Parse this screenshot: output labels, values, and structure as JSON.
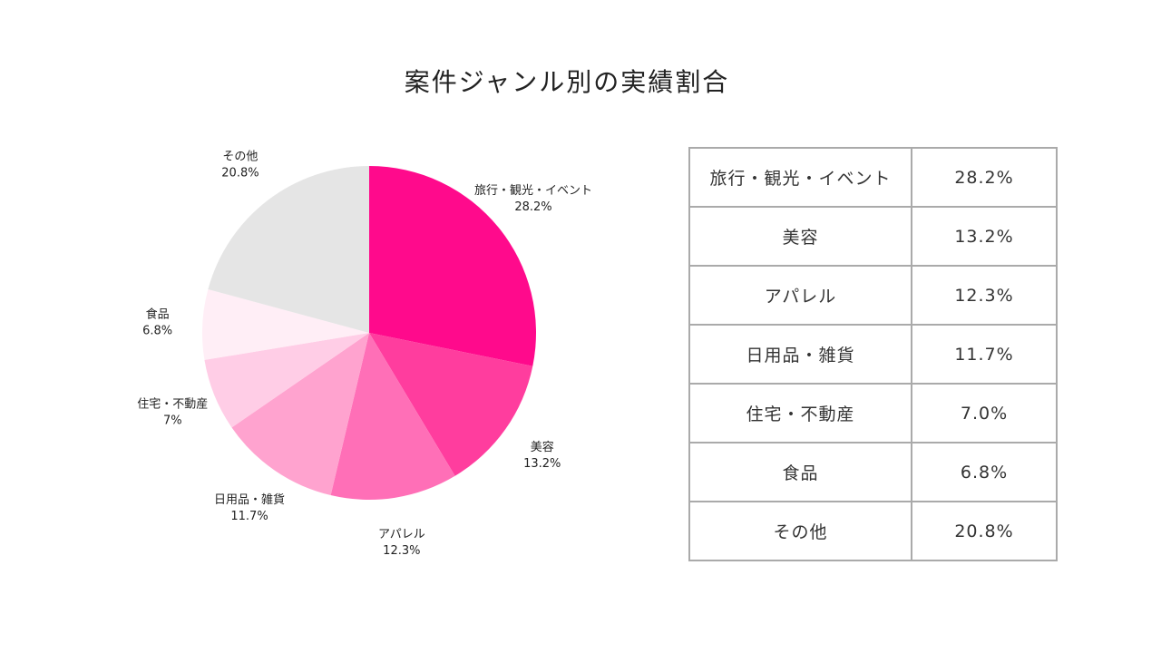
{
  "chart_data": {
    "type": "pie",
    "title": "案件ジャンル別の実績割合",
    "categories": [
      "旅行・観光・イベント",
      "美容",
      "アパレル",
      "日用品・雑貨",
      "住宅・不動産",
      "食品",
      "その他"
    ],
    "values": [
      28.2,
      13.2,
      12.3,
      11.7,
      7,
      6.8,
      20.8
    ],
    "value_labels": [
      "28.2%",
      "13.2%",
      "12.3%",
      "11.7%",
      "7%",
      "6.8%",
      "20.8%"
    ],
    "colors": [
      "#ff0a8c",
      "#ff3d9e",
      "#ff6fb7",
      "#ffa3cf",
      "#ffcde6",
      "#ffeef6",
      "#e5e5e5"
    ]
  },
  "table": {
    "rows": [
      [
        "旅行・観光・イベント",
        "28.2%"
      ],
      [
        "美容",
        "13.2%"
      ],
      [
        "アパレル",
        "12.3%"
      ],
      [
        "日用品・雑貨",
        "11.7%"
      ],
      [
        "住宅・不動産",
        "7.0%"
      ],
      [
        "食品",
        "6.8%"
      ],
      [
        "その他",
        "20.8%"
      ]
    ]
  }
}
